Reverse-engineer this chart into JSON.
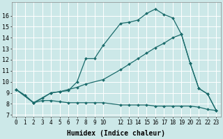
{
  "xlabel": "Humidex (Indice chaleur)",
  "background_color": "#cce8e8",
  "grid_color": "#ffffff",
  "line_color": "#1a6b6b",
  "xlim": [
    -0.5,
    23.5
  ],
  "ylim": [
    6.8,
    17.2
  ],
  "yticks": [
    7,
    8,
    9,
    10,
    11,
    12,
    13,
    14,
    15,
    16
  ],
  "xticks": [
    0,
    1,
    2,
    3,
    4,
    5,
    6,
    7,
    8,
    9,
    10,
    12,
    13,
    14,
    15,
    16,
    17,
    18,
    19,
    20,
    21,
    22,
    23
  ],
  "line1_x": [
    0,
    1,
    2,
    3,
    4,
    5,
    6,
    7,
    8,
    9,
    10,
    12,
    13,
    14,
    15,
    16,
    17,
    18,
    19,
    20,
    21,
    22,
    23
  ],
  "line1_y": [
    9.3,
    8.8,
    8.1,
    8.5,
    9.0,
    9.1,
    9.2,
    10.0,
    12.1,
    12.1,
    13.3,
    15.3,
    15.4,
    15.6,
    16.2,
    16.6,
    16.1,
    15.8,
    14.3,
    11.7,
    9.4,
    8.9,
    7.4
  ],
  "line2_x": [
    0,
    2,
    4,
    5,
    6,
    7,
    8,
    10,
    12,
    13,
    14,
    15,
    16,
    17,
    18,
    19,
    20,
    21,
    22,
    23
  ],
  "line2_y": [
    9.3,
    8.1,
    9.0,
    9.1,
    9.3,
    9.5,
    9.8,
    10.2,
    11.1,
    11.6,
    12.1,
    12.6,
    13.1,
    13.5,
    14.0,
    14.3,
    11.7,
    9.4,
    8.9,
    7.4
  ],
  "line3_x": [
    0,
    2,
    3,
    4,
    5,
    6,
    7,
    8,
    9,
    10,
    12,
    13,
    14,
    15,
    16,
    17,
    18,
    19,
    20,
    21,
    22,
    23
  ],
  "line3_y": [
    9.3,
    8.1,
    8.3,
    8.3,
    8.2,
    8.1,
    8.1,
    8.1,
    8.1,
    8.1,
    7.9,
    7.9,
    7.9,
    7.9,
    7.8,
    7.8,
    7.8,
    7.8,
    7.8,
    7.7,
    7.5,
    7.4
  ]
}
